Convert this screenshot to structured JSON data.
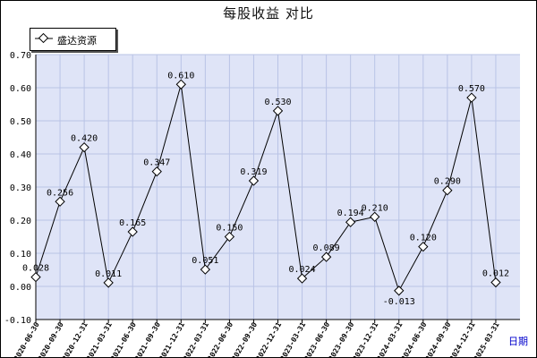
{
  "chart_data": {
    "type": "line",
    "title": "每股收益  对比",
    "xlabel": "日期",
    "ylabel": "",
    "ylim": [
      -0.1,
      0.7
    ],
    "yticks": [
      "0.70",
      "0.60",
      "0.50",
      "0.40",
      "0.30",
      "0.20",
      "0.10",
      "0.00",
      "-0.10"
    ],
    "grid": true,
    "legend": "top-left",
    "categories": [
      "2020-06-30",
      "2020-09-30",
      "2020-12-31",
      "2021-03-31",
      "2021-06-30",
      "2021-09-30",
      "2021-12-31",
      "2022-03-31",
      "2022-06-30",
      "2022-09-30",
      "2022-12-31",
      "2023-03-31",
      "2023-06-30",
      "2023-09-30",
      "2023-12-31",
      "2024-03-31",
      "2024-06-30",
      "2024-09-30",
      "2024-12-31",
      "2025-03-31"
    ],
    "series": [
      {
        "name": "盛达资源",
        "values": [
          0.028,
          0.256,
          0.42,
          0.011,
          0.165,
          0.347,
          0.61,
          0.051,
          0.15,
          0.319,
          0.53,
          0.024,
          0.089,
          0.194,
          0.21,
          -0.013,
          0.12,
          0.29,
          0.57,
          0.012
        ],
        "labels": [
          "0.028",
          "0.256",
          "0.420",
          "0.011",
          "0.165",
          "0.347",
          "0.610",
          "0.051",
          "0.150",
          "0.319",
          "0.530",
          "0.024",
          "0.089",
          "0.194",
          "0.210",
          "-0.013",
          "0.120",
          "0.290",
          "0.570",
          "0.012"
        ]
      }
    ],
    "colors": {
      "plot_bg": "#dfe4f7",
      "grid": "#b9c3e6",
      "line": "#000000",
      "axis_label": "#0000cc"
    }
  }
}
